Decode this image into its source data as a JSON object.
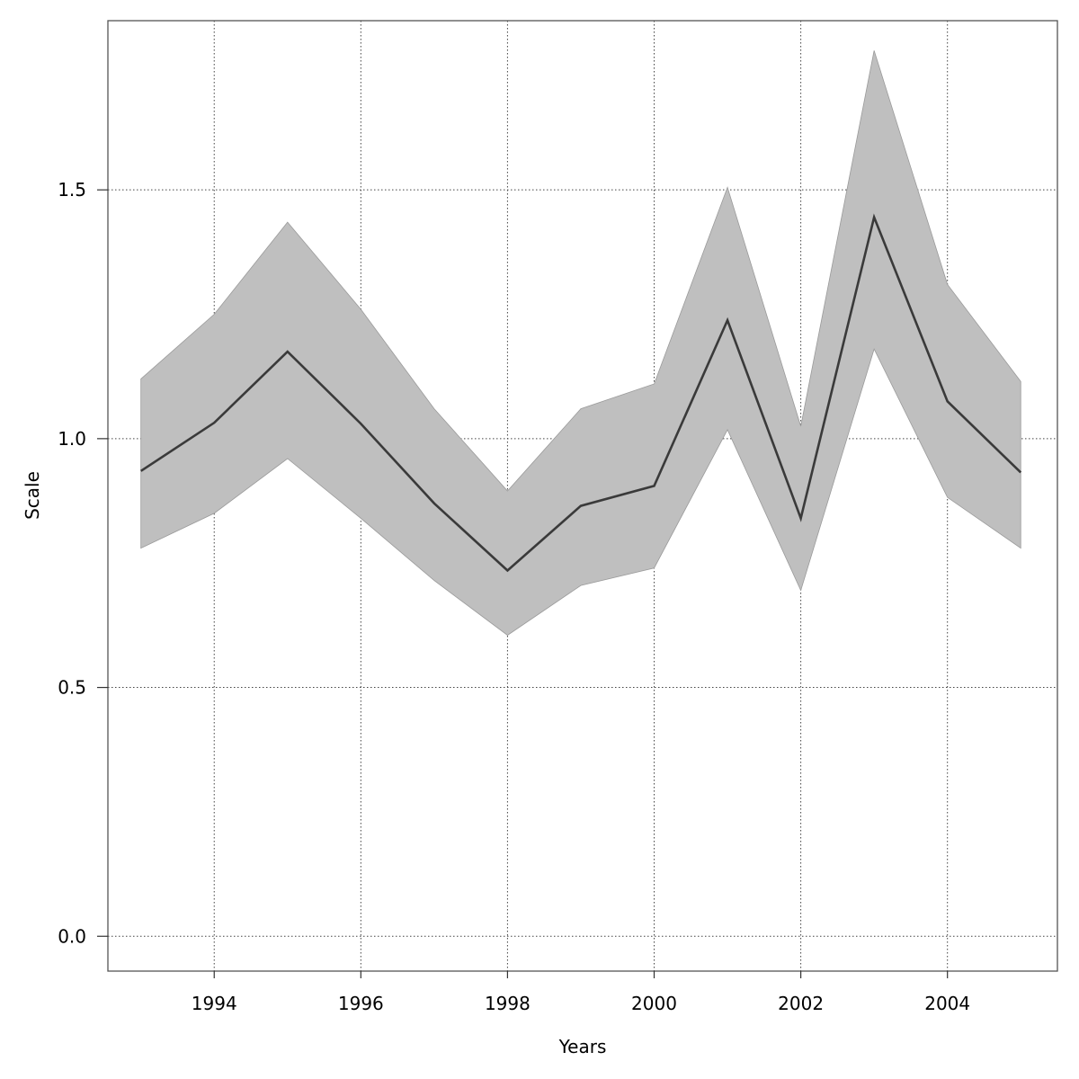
{
  "chart_data": {
    "type": "line",
    "xlabel": "Years",
    "ylabel": "Scale",
    "xlim": [
      1992.55,
      2005.5
    ],
    "ylim": [
      -0.07,
      1.84
    ],
    "x_ticks": [
      1994,
      1996,
      1998,
      2000,
      2002,
      2004
    ],
    "x_tick_labels": [
      "1994",
      "1996",
      "1998",
      "2000",
      "2002",
      "2004"
    ],
    "y_ticks": [
      0.0,
      0.5,
      1.0,
      1.5
    ],
    "y_tick_labels": [
      "0.0",
      "0.5",
      "1.0",
      "1.5"
    ],
    "grid": true,
    "x": [
      1993,
      1994,
      1995,
      1996,
      1997,
      1998,
      1999,
      2000,
      2001,
      2002,
      2003,
      2004,
      2005
    ],
    "series": [
      {
        "values": [
          0.935,
          1.032,
          1.175,
          1.03,
          0.87,
          0.735,
          0.865,
          0.905,
          1.238,
          0.84,
          1.445,
          1.075,
          0.932
        ],
        "lower": [
          0.78,
          0.85,
          0.96,
          0.84,
          0.715,
          0.605,
          0.705,
          0.74,
          1.018,
          0.695,
          1.18,
          0.882,
          0.78
        ],
        "upper": [
          1.12,
          1.25,
          1.435,
          1.26,
          1.06,
          0.895,
          1.06,
          1.11,
          1.505,
          1.025,
          1.78,
          1.31,
          1.115
        ],
        "line_color": "#3a3a3a",
        "band_color": "#bfbfbf"
      }
    ]
  }
}
